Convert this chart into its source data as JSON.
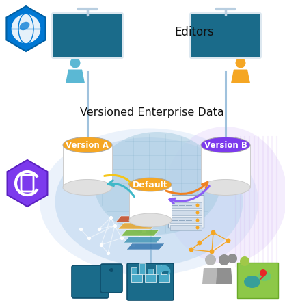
{
  "title": "Versioned Enterprise Data",
  "editors_label": "Editors",
  "version_a_label": "Version A",
  "version_b_label": "Version B",
  "default_label": "Default",
  "bg_color": "#ffffff",
  "monitor_color": "#1a6b8a",
  "monitor_border": "#dde8f0",
  "person_blue": "#5bb8d4",
  "person_orange": "#f5a623",
  "cloud_outer": "#dce8f8",
  "cloud_mid": "#c8dcf0",
  "cloud_inner_teal": "#a8d4e8",
  "cloud_sphere": "#b0cce0",
  "purple_glow": "#c8a8f0",
  "arrow_yellow": "#f5c518",
  "arrow_teal": "#40b8c8",
  "arrow_purple": "#8b5cf6",
  "arrow_orange": "#f08020",
  "hex_blue": "#0078d4",
  "hex_purple": "#7c3aed",
  "line_color": "#90b8d8",
  "cyl_version_a_top": "#f5a623",
  "cyl_version_b_top": "#7c3aed",
  "cyl_default_top": "#f5a623",
  "cyl_body": "#ffffff",
  "cyl_edge": "#cccccc"
}
